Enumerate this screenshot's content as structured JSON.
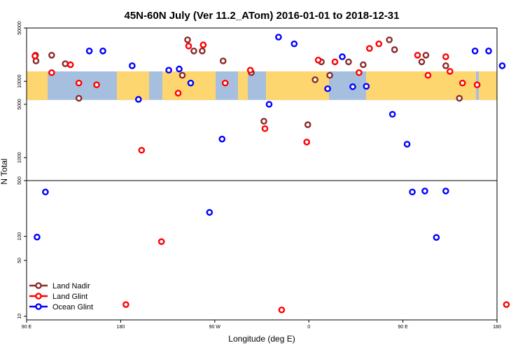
{
  "chart_data": {
    "type": "scatter",
    "title": "45N-60N July (Ver 11.2_ATom)   2016-01-01 to 2018-12-31",
    "xlabel": "Longitude (deg E)",
    "ylabel": "N Total",
    "x_ticks": [
      {
        "value": 90,
        "label": "90 E"
      },
      {
        "value": 180,
        "label": "180"
      },
      {
        "value": 270,
        "label": "90 W"
      },
      {
        "value": 360,
        "label": "0"
      },
      {
        "value": 450,
        "label": "90 E"
      },
      {
        "value": 540,
        "label": "180"
      }
    ],
    "upper_panel": {
      "scale": "log",
      "ylim": [
        500,
        50000
      ],
      "y_ticks": [
        {
          "value": 50000,
          "label": "50000"
        },
        {
          "value": 10000,
          "label": "10000"
        },
        {
          "value": 5000,
          "label": "5000"
        },
        {
          "value": 1000,
          "label": "1000"
        }
      ],
      "map_band": {
        "lat_range": "45N-60N",
        "y_range": [
          5700,
          13500
        ]
      }
    },
    "lower_panel": {
      "scale": "log",
      "ylim": [
        9,
        500
      ],
      "y_ticks": [
        {
          "value": 500,
          "label": "500"
        },
        {
          "value": 100,
          "label": "100"
        },
        {
          "value": 50,
          "label": "50"
        },
        {
          "value": 10,
          "label": "10"
        }
      ]
    },
    "series": [
      {
        "name": "Land Nadir",
        "color": "#8b2a2a",
        "points": [
          [
            98.5,
            22000
          ],
          [
            99,
            18500
          ],
          [
            114,
            22000
          ],
          [
            127,
            17000
          ],
          [
            140,
            6000
          ],
          [
            239,
            12000
          ],
          [
            244,
            35000
          ],
          [
            258,
            25000
          ],
          [
            278,
            18500
          ],
          [
            305,
            13000
          ],
          [
            317,
            3000
          ],
          [
            359,
            2700
          ],
          [
            366,
            10500
          ],
          [
            380,
            12000
          ],
          [
            398,
            18000
          ],
          [
            412,
            16500
          ],
          [
            437,
            35000
          ],
          [
            442,
            26000
          ],
          [
            468,
            18000
          ],
          [
            472,
            22000
          ],
          [
            491,
            16000
          ],
          [
            504,
            6000
          ],
          [
            250,
            25000
          ],
          [
            372,
            18000
          ]
        ]
      },
      {
        "name": "Land Glint",
        "color": "#ff0000",
        "points": [
          [
            98,
            21500
          ],
          [
            114,
            13000
          ],
          [
            132,
            16500
          ],
          [
            140,
            9500
          ],
          [
            157,
            9000
          ],
          [
            185,
            14
          ],
          [
            200,
            1250
          ],
          [
            219,
            86
          ],
          [
            235,
            7000
          ],
          [
            245,
            29000
          ],
          [
            259,
            30000
          ],
          [
            280,
            9500
          ],
          [
            304,
            14000
          ],
          [
            318,
            2400
          ],
          [
            334,
            12
          ],
          [
            358,
            1600
          ],
          [
            369,
            19000
          ],
          [
            385,
            18000
          ],
          [
            408,
            13000
          ],
          [
            418,
            27000
          ],
          [
            427,
            31000
          ],
          [
            464,
            22000
          ],
          [
            491,
            21000
          ],
          [
            495,
            13500
          ],
          [
            507,
            9500
          ],
          [
            521,
            9000
          ],
          [
            549,
            14
          ],
          [
            474,
            12000
          ]
        ]
      },
      {
        "name": "Ocean Glint",
        "color": "#0000ff",
        "points": [
          [
            100,
            98
          ],
          [
            108,
            360
          ],
          [
            150,
            25000
          ],
          [
            163,
            25000
          ],
          [
            191,
            16000
          ],
          [
            197,
            5800
          ],
          [
            226,
            14000
          ],
          [
            236,
            14500
          ],
          [
            247,
            9500
          ],
          [
            265,
            200
          ],
          [
            277,
            1750
          ],
          [
            322,
            5000
          ],
          [
            331,
            38000
          ],
          [
            346,
            31000
          ],
          [
            378,
            8000
          ],
          [
            392,
            21000
          ],
          [
            402,
            8500
          ],
          [
            415,
            8600
          ],
          [
            440,
            3700
          ],
          [
            454,
            1500
          ],
          [
            459,
            360
          ],
          [
            471,
            370
          ],
          [
            482,
            97
          ],
          [
            491,
            370
          ],
          [
            519,
            25000
          ],
          [
            532,
            25000
          ],
          [
            545,
            16000
          ]
        ]
      }
    ]
  }
}
